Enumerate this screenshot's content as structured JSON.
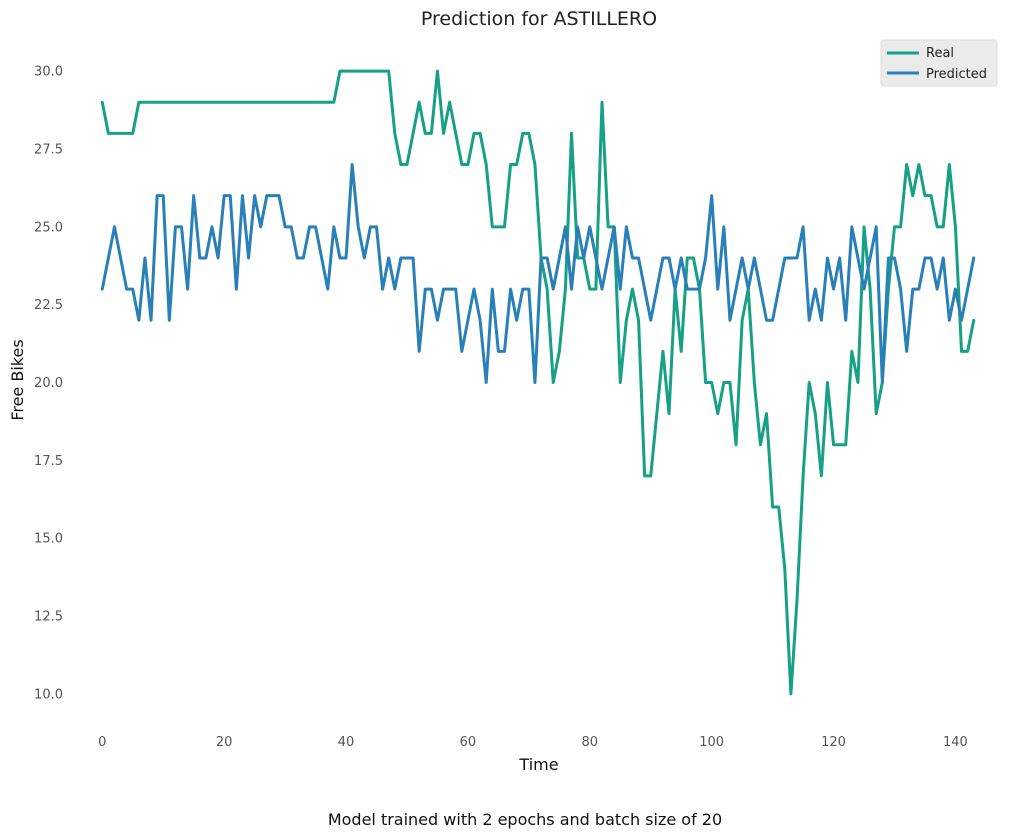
{
  "chart_data": {
    "type": "line",
    "title": "Prediction for ASTILLERO",
    "xlabel": "Time",
    "ylabel": "Free Bikes",
    "caption": "Model trained with 2 epochs and batch size of 20",
    "xlim": [
      -3,
      146
    ],
    "ylim": [
      9,
      31
    ],
    "xticks": [
      0,
      20,
      40,
      60,
      80,
      100,
      120,
      140
    ],
    "yticks": [
      10.0,
      12.5,
      15.0,
      17.5,
      20.0,
      22.5,
      25.0,
      27.5,
      30.0
    ],
    "grid": false,
    "legend_position": "top-right",
    "series": [
      {
        "name": "Real",
        "color": "#16a085",
        "values": [
          29,
          28,
          28,
          28,
          28,
          28,
          29,
          29,
          29,
          29,
          29,
          29,
          29,
          29,
          29,
          29,
          29,
          29,
          29,
          29,
          29,
          29,
          29,
          29,
          29,
          29,
          29,
          29,
          29,
          29,
          29,
          29,
          29,
          29,
          29,
          29,
          29,
          29,
          29,
          30,
          30,
          30,
          30,
          30,
          30,
          30,
          30,
          30,
          28,
          27,
          27,
          28,
          29,
          28,
          28,
          30,
          28,
          29,
          28,
          27,
          27,
          28,
          28,
          27,
          25,
          25,
          25,
          27,
          27,
          28,
          28,
          27,
          24,
          23,
          20,
          21,
          23,
          28,
          24,
          24,
          23,
          23,
          29,
          25,
          25,
          20,
          22,
          23,
          22,
          17,
          17,
          19,
          21,
          19,
          23,
          21,
          24,
          24,
          23,
          20,
          20,
          19,
          20,
          20,
          18,
          22,
          23,
          20,
          18,
          19,
          16,
          16,
          14,
          10,
          13,
          17,
          20,
          19,
          17,
          20,
          18,
          18,
          18,
          21,
          20,
          25,
          23,
          19,
          20,
          23,
          25,
          25,
          27,
          26,
          27,
          26,
          26,
          25,
          25,
          27,
          25,
          21,
          21,
          22
        ]
      },
      {
        "name": "Predicted",
        "color": "#2980b9",
        "values": [
          23,
          24,
          25,
          24,
          23,
          23,
          22,
          24,
          22,
          26,
          26,
          22,
          25,
          25,
          23,
          26,
          24,
          24,
          25,
          24,
          26,
          26,
          23,
          26,
          24,
          26,
          25,
          26,
          26,
          26,
          25,
          25,
          24,
          24,
          25,
          25,
          24,
          23,
          25,
          24,
          24,
          27,
          25,
          24,
          25,
          25,
          23,
          24,
          23,
          24,
          24,
          24,
          21,
          23,
          23,
          22,
          23,
          23,
          23,
          21,
          22,
          23,
          22,
          20,
          23,
          21,
          21,
          23,
          22,
          23,
          23,
          20,
          24,
          24,
          23,
          24,
          25,
          23,
          25,
          24,
          25,
          24,
          23,
          24,
          25,
          23,
          25,
          24,
          24,
          23,
          22,
          23,
          24,
          24,
          23,
          24,
          23,
          23,
          23,
          24,
          26,
          23,
          25,
          22,
          23,
          24,
          23,
          24,
          23,
          22,
          22,
          23,
          24,
          24,
          24,
          25,
          22,
          23,
          22,
          24,
          23,
          24,
          22,
          25,
          24,
          23,
          24,
          25,
          20,
          24,
          24,
          23,
          21,
          23,
          23,
          24,
          24,
          23,
          24,
          22,
          23,
          22,
          23,
          24
        ]
      }
    ]
  }
}
